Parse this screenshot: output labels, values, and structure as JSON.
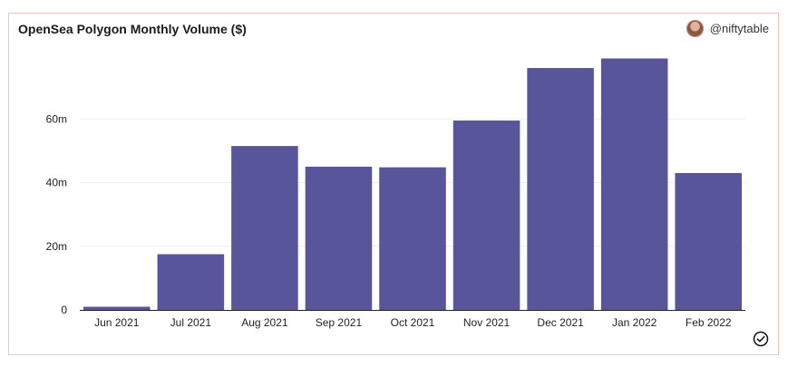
{
  "header": {
    "title": "OpenSea Polygon Monthly Volume ($)",
    "author": "@niftytable"
  },
  "colors": {
    "bar": "#58559a",
    "grid": "#eeeeee",
    "panel_border": "#f0c4bf"
  },
  "chart_data": {
    "type": "bar",
    "title": "OpenSea Polygon Monthly Volume ($)",
    "xlabel": "",
    "ylabel": "",
    "categories": [
      "Jun 2021",
      "Jul 2021",
      "Aug 2021",
      "Sep 2021",
      "Oct 2021",
      "Nov 2021",
      "Dec 2021",
      "Jan 2022",
      "Feb 2022"
    ],
    "values": [
      1000000,
      17500000,
      51500000,
      45000000,
      44800000,
      59500000,
      76000000,
      79000000,
      43000000
    ],
    "ylim": [
      0,
      80000000
    ],
    "yticks": [
      0,
      20000000,
      40000000,
      60000000
    ],
    "ytick_labels": [
      "0",
      "20m",
      "40m",
      "60m"
    ],
    "grid": true,
    "legend": "none"
  }
}
